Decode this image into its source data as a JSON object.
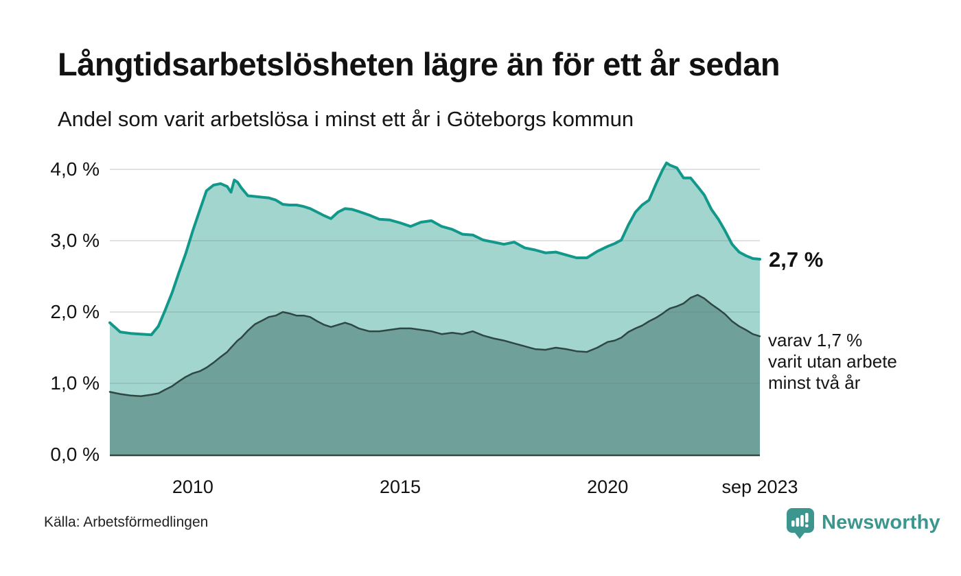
{
  "header": {
    "title": "Långtidsarbetslösheten lägre än för ett år sedan",
    "subtitle": "Andel som varit arbetslösa i minst ett år i Göteborgs kommun"
  },
  "annotations": {
    "value_main": "2,7 %",
    "secondary_lines": [
      "varav 1,7 %",
      "varit utan arbete",
      "minst två år"
    ]
  },
  "footer": {
    "source": "Källa: Arbetsförmedlingen",
    "brand": "Newsworthy"
  },
  "colors": {
    "brand_teal": "#3c968e",
    "series1_line": "#12988b",
    "series1_fill": "#a3d5cf",
    "series2_line": "#2e4743",
    "series2_fill": "#6fa09a",
    "gridline": "#e8e8ec",
    "axis_line": "#3c4442",
    "text": "#121212"
  },
  "chart_data": {
    "type": "area",
    "title": "Långtidsarbetslösheten lägre än för ett år sedan",
    "subtitle": "Andel som varit arbetslösa i minst ett år i Göteborgs kommun",
    "xlabel": "",
    "ylabel": "",
    "xlim": [
      2008.0,
      2023.67
    ],
    "ylim": [
      0,
      4.33
    ],
    "grid": "horizontal",
    "legend_position": "end-of-line-labels",
    "x": [
      2008.0,
      2008.25,
      2008.5,
      2008.75,
      2009.0,
      2009.17,
      2009.33,
      2009.5,
      2009.67,
      2009.83,
      2010.0,
      2010.17,
      2010.33,
      2010.5,
      2010.67,
      2010.83,
      2010.92,
      2011.0,
      2011.08,
      2011.17,
      2011.33,
      2011.5,
      2011.67,
      2011.83,
      2012.0,
      2012.17,
      2012.33,
      2012.5,
      2012.67,
      2012.83,
      2013.0,
      2013.17,
      2013.33,
      2013.5,
      2013.67,
      2013.83,
      2014.0,
      2014.25,
      2014.5,
      2014.75,
      2015.0,
      2015.25,
      2015.5,
      2015.75,
      2016.0,
      2016.25,
      2016.5,
      2016.75,
      2017.0,
      2017.25,
      2017.5,
      2017.75,
      2018.0,
      2018.25,
      2018.5,
      2018.75,
      2019.0,
      2019.25,
      2019.5,
      2019.75,
      2020.0,
      2020.17,
      2020.33,
      2020.5,
      2020.67,
      2020.83,
      2021.0,
      2021.17,
      2021.33,
      2021.42,
      2021.5,
      2021.67,
      2021.83,
      2022.0,
      2022.17,
      2022.33,
      2022.5,
      2022.67,
      2022.83,
      2023.0,
      2023.17,
      2023.33,
      2023.5,
      2023.67
    ],
    "series": [
      {
        "name": "Andel som varit arbetslösa i minst ett år",
        "line_color": "#12988b",
        "fill_color": "#a3d5cf",
        "line_width": 4,
        "end_value_label": "2,7 %",
        "values": [
          1.85,
          1.72,
          1.7,
          1.69,
          1.68,
          1.8,
          2.02,
          2.27,
          2.56,
          2.82,
          3.14,
          3.43,
          3.7,
          3.78,
          3.8,
          3.76,
          3.68,
          3.85,
          3.82,
          3.74,
          3.63,
          3.62,
          3.61,
          3.6,
          3.57,
          3.51,
          3.5,
          3.5,
          3.48,
          3.45,
          3.4,
          3.35,
          3.31,
          3.4,
          3.45,
          3.44,
          3.41,
          3.36,
          3.3,
          3.29,
          3.25,
          3.2,
          3.26,
          3.28,
          3.2,
          3.16,
          3.09,
          3.08,
          3.01,
          2.98,
          2.95,
          2.98,
          2.9,
          2.87,
          2.83,
          2.84,
          2.8,
          2.76,
          2.76,
          2.85,
          2.92,
          2.96,
          3.01,
          3.22,
          3.4,
          3.5,
          3.57,
          3.8,
          4.0,
          4.09,
          4.06,
          4.02,
          3.88,
          3.88,
          3.76,
          3.64,
          3.44,
          3.3,
          3.14,
          2.95,
          2.84,
          2.79,
          2.75,
          2.74
        ]
      },
      {
        "name": "varav varit utan arbete minst två år",
        "line_color": "#2e4743",
        "fill_color": "#6fa09a",
        "line_width": 2.5,
        "end_value_label": "varav 1,7 % varit utan arbete minst två år",
        "values": [
          0.88,
          0.85,
          0.83,
          0.82,
          0.84,
          0.86,
          0.91,
          0.96,
          1.03,
          1.09,
          1.14,
          1.17,
          1.22,
          1.29,
          1.37,
          1.44,
          1.5,
          1.55,
          1.6,
          1.64,
          1.74,
          1.83,
          1.88,
          1.93,
          1.95,
          2.0,
          1.98,
          1.95,
          1.95,
          1.93,
          1.87,
          1.82,
          1.79,
          1.82,
          1.85,
          1.82,
          1.77,
          1.73,
          1.73,
          1.75,
          1.77,
          1.77,
          1.75,
          1.73,
          1.69,
          1.71,
          1.69,
          1.73,
          1.67,
          1.63,
          1.6,
          1.56,
          1.52,
          1.48,
          1.47,
          1.5,
          1.48,
          1.45,
          1.44,
          1.5,
          1.58,
          1.6,
          1.64,
          1.72,
          1.77,
          1.81,
          1.87,
          1.92,
          1.98,
          2.02,
          2.05,
          2.08,
          2.12,
          2.2,
          2.24,
          2.19,
          2.11,
          2.04,
          1.97,
          1.87,
          1.8,
          1.75,
          1.69,
          1.66
        ]
      }
    ],
    "xticks": [
      {
        "value": 2010,
        "label": "2010"
      },
      {
        "value": 2015,
        "label": "2015"
      },
      {
        "value": 2020,
        "label": "2020"
      },
      {
        "value": 2023.67,
        "label": "sep 2023"
      }
    ],
    "yticks": [
      {
        "value": 0,
        "label": "0,0 %"
      },
      {
        "value": 1,
        "label": "1,0 %"
      },
      {
        "value": 2,
        "label": "2,0 %"
      },
      {
        "value": 3,
        "label": "3,0 %"
      },
      {
        "value": 4,
        "label": "4,0 %"
      }
    ]
  }
}
